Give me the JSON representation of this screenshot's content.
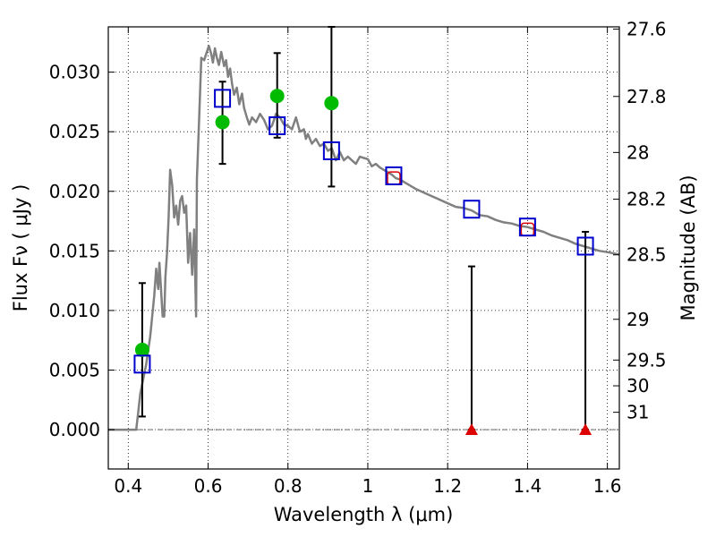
{
  "chart_data": {
    "type": "scatter",
    "xlabel": "Wavelength  λ (μm)",
    "ylabel": "Flux  Fν  ( μJy )",
    "y2label": "Magnitude (AB)",
    "xlim": [
      0.35,
      1.63
    ],
    "ylim": [
      -0.0033,
      0.0338
    ],
    "grid": true,
    "x_ticks": [
      0.4,
      0.6,
      0.8,
      1.0,
      1.2,
      1.4,
      1.6
    ],
    "x_tick_labels": [
      "0.4",
      "0.6",
      "0.8",
      "1",
      "1.2",
      "1.4",
      "1.6"
    ],
    "y_ticks": [
      0.0,
      0.005,
      0.01,
      0.015,
      0.02,
      0.025,
      0.03
    ],
    "y_tick_labels": [
      "0.000",
      "0.005",
      "0.010",
      "0.015",
      "0.020",
      "0.025",
      "0.030"
    ],
    "y2_ticks": [
      {
        "label": "27.6",
        "flux": 0.03361
      },
      {
        "label": "27.8",
        "flux": 0.02796
      },
      {
        "label": "28",
        "flux": 0.02326
      },
      {
        "label": "28.2",
        "flux": 0.01934
      },
      {
        "label": "28.5",
        "flux": 0.01467
      },
      {
        "label": "29",
        "flux": 0.00926
      },
      {
        "label": "29.5",
        "flux": 0.00584
      },
      {
        "label": "30",
        "flux": 0.00368
      },
      {
        "label": "31",
        "flux": 0.00146
      }
    ],
    "series": [
      {
        "kind": "line",
        "color": "#808080",
        "points": [
          [
            0.35,
            0.0
          ],
          [
            0.42,
            0.0
          ],
          [
            0.425,
            0.0015
          ],
          [
            0.43,
            0.003
          ],
          [
            0.445,
            0.0055
          ],
          [
            0.455,
            0.0078
          ],
          [
            0.465,
            0.0112
          ],
          [
            0.47,
            0.0135
          ],
          [
            0.475,
            0.0118
          ],
          [
            0.478,
            0.014
          ],
          [
            0.482,
            0.0118
          ],
          [
            0.486,
            0.0095
          ],
          [
            0.49,
            0.0095
          ],
          [
            0.493,
            0.0128
          ],
          [
            0.497,
            0.0148
          ],
          [
            0.501,
            0.0178
          ],
          [
            0.505,
            0.0218
          ],
          [
            0.51,
            0.0205
          ],
          [
            0.515,
            0.0178
          ],
          [
            0.52,
            0.0188
          ],
          [
            0.525,
            0.0172
          ],
          [
            0.53,
            0.0192
          ],
          [
            0.535,
            0.0196
          ],
          [
            0.54,
            0.0182
          ],
          [
            0.545,
            0.0188
          ],
          [
            0.55,
            0.014
          ],
          [
            0.555,
            0.0165
          ],
          [
            0.56,
            0.013
          ],
          [
            0.565,
            0.0168
          ],
          [
            0.57,
            0.0095
          ],
          [
            0.572,
            0.021
          ],
          [
            0.578,
            0.0265
          ],
          [
            0.583,
            0.0312
          ],
          [
            0.59,
            0.031
          ],
          [
            0.596,
            0.0316
          ],
          [
            0.602,
            0.0322
          ],
          [
            0.608,
            0.0315
          ],
          [
            0.612,
            0.0308
          ],
          [
            0.617,
            0.032
          ],
          [
            0.622,
            0.0312
          ],
          [
            0.627,
            0.0306
          ],
          [
            0.633,
            0.0317
          ],
          [
            0.64,
            0.0305
          ],
          [
            0.645,
            0.031
          ],
          [
            0.65,
            0.0296
          ],
          [
            0.655,
            0.0303
          ],
          [
            0.66,
            0.029
          ],
          [
            0.665,
            0.0281
          ],
          [
            0.672,
            0.0287
          ],
          [
            0.678,
            0.0273
          ],
          [
            0.685,
            0.0282
          ],
          [
            0.69,
            0.027
          ],
          [
            0.697,
            0.0262
          ],
          [
            0.703,
            0.0256
          ],
          [
            0.71,
            0.0262
          ],
          [
            0.72,
            0.0258
          ],
          [
            0.73,
            0.0265
          ],
          [
            0.74,
            0.026
          ],
          [
            0.75,
            0.0252
          ],
          [
            0.76,
            0.0255
          ],
          [
            0.77,
            0.0265
          ],
          [
            0.78,
            0.0262
          ],
          [
            0.79,
            0.0256
          ],
          [
            0.8,
            0.0255
          ],
          [
            0.81,
            0.0252
          ],
          [
            0.82,
            0.0262
          ],
          [
            0.83,
            0.025
          ],
          [
            0.84,
            0.0252
          ],
          [
            0.845,
            0.0244
          ],
          [
            0.85,
            0.0248
          ],
          [
            0.86,
            0.024
          ],
          [
            0.87,
            0.0244
          ],
          [
            0.88,
            0.0238
          ],
          [
            0.89,
            0.024
          ],
          [
            0.9,
            0.0234
          ],
          [
            0.91,
            0.0236
          ],
          [
            0.92,
            0.0226
          ],
          [
            0.93,
            0.0233
          ],
          [
            0.94,
            0.0226
          ],
          [
            0.95,
            0.0229
          ],
          [
            0.96,
            0.0226
          ],
          [
            0.97,
            0.0223
          ],
          [
            0.98,
            0.0229
          ],
          [
            0.99,
            0.0228
          ],
          [
            1.0,
            0.0227
          ],
          [
            1.01,
            0.0221
          ],
          [
            1.02,
            0.0223
          ],
          [
            1.03,
            0.022
          ],
          [
            1.04,
            0.0218
          ],
          [
            1.05,
            0.0216
          ],
          [
            1.06,
            0.0214
          ],
          [
            1.07,
            0.0211
          ],
          [
            1.08,
            0.021
          ],
          [
            1.1,
            0.0206
          ],
          [
            1.12,
            0.0202
          ],
          [
            1.14,
            0.0199
          ],
          [
            1.16,
            0.0196
          ],
          [
            1.18,
            0.0193
          ],
          [
            1.2,
            0.019
          ],
          [
            1.22,
            0.0187
          ],
          [
            1.24,
            0.0186
          ],
          [
            1.26,
            0.0184
          ],
          [
            1.28,
            0.018
          ],
          [
            1.3,
            0.0179
          ],
          [
            1.32,
            0.0176
          ],
          [
            1.34,
            0.0174
          ],
          [
            1.36,
            0.0173
          ],
          [
            1.38,
            0.0171
          ],
          [
            1.4,
            0.017
          ],
          [
            1.42,
            0.0168
          ],
          [
            1.44,
            0.0166
          ],
          [
            1.46,
            0.0163
          ],
          [
            1.48,
            0.0161
          ],
          [
            1.5,
            0.0159
          ],
          [
            1.52,
            0.0156
          ],
          [
            1.54,
            0.0154
          ],
          [
            1.56,
            0.0152
          ],
          [
            1.58,
            0.015
          ],
          [
            1.6,
            0.0149
          ],
          [
            1.63,
            0.0147
          ]
        ]
      },
      {
        "kind": "errorbar",
        "color": "#000000",
        "points": [
          {
            "x": 0.435,
            "lo": 0.0011,
            "hi": 0.0123
          },
          {
            "x": 0.636,
            "lo": 0.0223,
            "hi": 0.0292
          },
          {
            "x": 0.773,
            "lo": 0.0245,
            "hi": 0.0316
          },
          {
            "x": 0.909,
            "lo": 0.0204,
            "hi": 0.0338
          },
          {
            "x": 1.26,
            "lo": 0.0,
            "hi": 0.0137
          },
          {
            "x": 1.545,
            "lo": 0.0,
            "hi": 0.0166
          }
        ]
      },
      {
        "kind": "marker-circle",
        "color": "#00bb00",
        "points": [
          {
            "x": 0.435,
            "y": 0.0067
          },
          {
            "x": 0.636,
            "y": 0.0258
          },
          {
            "x": 0.773,
            "y": 0.028
          },
          {
            "x": 0.909,
            "y": 0.0274
          }
        ]
      },
      {
        "kind": "marker-square-red",
        "color": "#dd0000",
        "points": [
          {
            "x": 1.065,
            "y": 0.0211
          },
          {
            "x": 1.4,
            "y": 0.0168
          }
        ]
      },
      {
        "kind": "marker-square-blue",
        "color": "#0000cc",
        "points": [
          {
            "x": 0.435,
            "y": 0.0055
          },
          {
            "x": 0.636,
            "y": 0.0278
          },
          {
            "x": 0.773,
            "y": 0.0255
          },
          {
            "x": 0.909,
            "y": 0.0234
          },
          {
            "x": 1.065,
            "y": 0.0213
          },
          {
            "x": 1.26,
            "y": 0.0185
          },
          {
            "x": 1.4,
            "y": 0.017
          },
          {
            "x": 1.545,
            "y": 0.0154
          }
        ]
      },
      {
        "kind": "marker-triangle",
        "color": "#dd0000",
        "points": [
          {
            "x": 1.26,
            "y": 0.0
          },
          {
            "x": 1.545,
            "y": 0.0
          }
        ]
      }
    ]
  }
}
